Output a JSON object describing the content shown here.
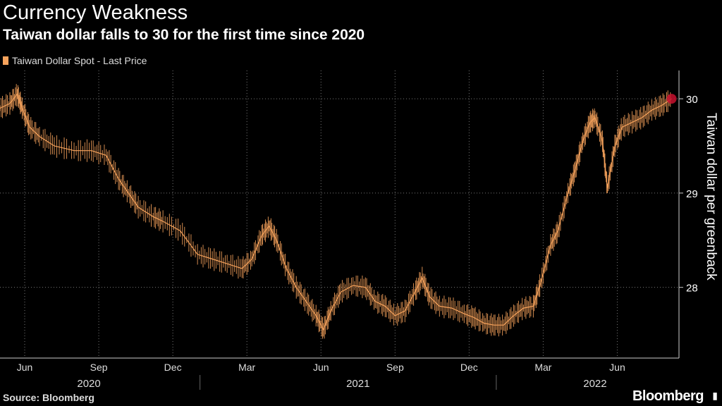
{
  "colors": {
    "accent": "#f7a35c",
    "marker": "#c8102e",
    "grid": "#777777",
    "axis": "#cccccc"
  },
  "footer": {
    "source": "Source: Bloomberg",
    "brand": "Bloomberg",
    "brand_icon": "chart-icon"
  },
  "chart_data": {
    "type": "line",
    "title": "Currency Weakness",
    "subtitle": "Taiwan dollar falls to 30 for the first time since 2020",
    "legend": [
      "Taiwan Dollar Spot - Last Price"
    ],
    "ylabel": "Taiwan dollar per greenback",
    "ylim": [
      27.25,
      30.3
    ],
    "yticks": [
      28,
      29,
      30
    ],
    "x_range": [
      0,
      27.5
    ],
    "month_ticks": [
      {
        "label": "Jun",
        "x": 1
      },
      {
        "label": "Sep",
        "x": 4
      },
      {
        "label": "Dec",
        "x": 7
      },
      {
        "label": "Mar",
        "x": 10
      },
      {
        "label": "Jun",
        "x": 13
      },
      {
        "label": "Sep",
        "x": 16
      },
      {
        "label": "Dec",
        "x": 19
      },
      {
        "label": "Mar",
        "x": 22
      },
      {
        "label": "Jun",
        "x": 25
      }
    ],
    "years": [
      {
        "label": "2020",
        "x": 3.6
      },
      {
        "label": "2021",
        "x": 14.5
      },
      {
        "label": "2022",
        "x": 24.1
      }
    ],
    "year_dividers": [
      8.1,
      20.1
    ],
    "series": [
      {
        "name": "Taiwan Dollar Spot - Last Price",
        "points": [
          [
            0,
            29.9
          ],
          [
            0.4,
            29.95
          ],
          [
            0.7,
            30.05
          ],
          [
            0.9,
            29.9
          ],
          [
            1.2,
            29.7
          ],
          [
            1.6,
            29.6
          ],
          [
            2.2,
            29.5
          ],
          [
            3.0,
            29.45
          ],
          [
            3.7,
            29.45
          ],
          [
            4.3,
            29.4
          ],
          [
            4.8,
            29.15
          ],
          [
            5.2,
            29.0
          ],
          [
            5.6,
            28.85
          ],
          [
            6.2,
            28.75
          ],
          [
            6.6,
            28.7
          ],
          [
            7.3,
            28.6
          ],
          [
            8.0,
            28.35
          ],
          [
            8.6,
            28.3
          ],
          [
            9.2,
            28.25
          ],
          [
            9.8,
            28.2
          ],
          [
            10.2,
            28.3
          ],
          [
            10.6,
            28.55
          ],
          [
            10.9,
            28.65
          ],
          [
            11.2,
            28.5
          ],
          [
            11.6,
            28.2
          ],
          [
            12.0,
            28.0
          ],
          [
            12.4,
            27.85
          ],
          [
            12.8,
            27.7
          ],
          [
            13.1,
            27.55
          ],
          [
            13.4,
            27.75
          ],
          [
            13.8,
            27.95
          ],
          [
            14.3,
            28.02
          ],
          [
            14.8,
            28.0
          ],
          [
            15.2,
            27.85
          ],
          [
            15.6,
            27.8
          ],
          [
            16.0,
            27.7
          ],
          [
            16.4,
            27.75
          ],
          [
            16.8,
            27.95
          ],
          [
            17.1,
            28.1
          ],
          [
            17.4,
            27.9
          ],
          [
            17.8,
            27.8
          ],
          [
            18.3,
            27.78
          ],
          [
            18.8,
            27.72
          ],
          [
            19.2,
            27.68
          ],
          [
            19.6,
            27.62
          ],
          [
            20.0,
            27.6
          ],
          [
            20.4,
            27.6
          ],
          [
            20.8,
            27.7
          ],
          [
            21.2,
            27.78
          ],
          [
            21.6,
            27.8
          ],
          [
            21.9,
            28.05
          ],
          [
            22.3,
            28.45
          ],
          [
            22.6,
            28.6
          ],
          [
            23.0,
            29.0
          ],
          [
            23.3,
            29.25
          ],
          [
            23.6,
            29.55
          ],
          [
            23.9,
            29.75
          ],
          [
            24.1,
            29.8
          ],
          [
            24.4,
            29.55
          ],
          [
            24.6,
            29.05
          ],
          [
            24.9,
            29.5
          ],
          [
            25.2,
            29.7
          ],
          [
            25.6,
            29.75
          ],
          [
            26.0,
            29.8
          ],
          [
            26.4,
            29.88
          ],
          [
            26.8,
            29.93
          ],
          [
            27.2,
            30.0
          ]
        ]
      }
    ]
  }
}
